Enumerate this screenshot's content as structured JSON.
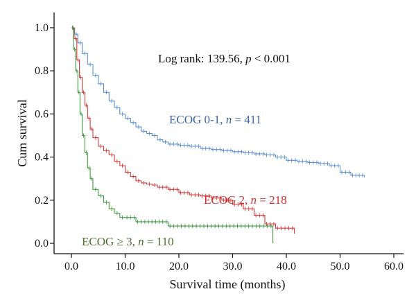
{
  "chart_data": {
    "type": "line",
    "subtype": "kaplan-meier",
    "title": "",
    "xlabel": "Survival time (months)",
    "ylabel": "Cum survival",
    "xlim": [
      0,
      60
    ],
    "ylim": [
      0,
      1
    ],
    "x_ticks": [
      "0.0",
      "10.0",
      "20.0",
      "30.0",
      "40.0",
      "50.0",
      "60.0"
    ],
    "y_ticks": [
      "0.0",
      "0.2",
      "0.4",
      "0.6",
      "0.8",
      "1.0"
    ],
    "grid": false,
    "legend": "none",
    "annotations": {
      "test_prefix": "Log rank: 139.56,",
      "test_p": "p",
      "test_suffix": " < 0.001"
    },
    "series": [
      {
        "label_prefix": "ECOG 0-1,",
        "label_n": "n",
        "label_suffix": " = 411",
        "color": "#5b8fd4",
        "points": [
          [
            0,
            1.0
          ],
          [
            0.6,
            0.97
          ],
          [
            1.2,
            0.93
          ],
          [
            2,
            0.88
          ],
          [
            3,
            0.83
          ],
          [
            4,
            0.78
          ],
          [
            5,
            0.74
          ],
          [
            6,
            0.7
          ],
          [
            7,
            0.66
          ],
          [
            8,
            0.63
          ],
          [
            9,
            0.6
          ],
          [
            10,
            0.58
          ],
          [
            11,
            0.56
          ],
          [
            12,
            0.54
          ],
          [
            13,
            0.52
          ],
          [
            14,
            0.51
          ],
          [
            15,
            0.5
          ],
          [
            16,
            0.48
          ],
          [
            17,
            0.47
          ],
          [
            18,
            0.46
          ],
          [
            20,
            0.455
          ],
          [
            22,
            0.45
          ],
          [
            24,
            0.44
          ],
          [
            26,
            0.435
          ],
          [
            28,
            0.43
          ],
          [
            30,
            0.425
          ],
          [
            32,
            0.42
          ],
          [
            34,
            0.415
          ],
          [
            36,
            0.41
          ],
          [
            38,
            0.4
          ],
          [
            40,
            0.385
          ],
          [
            42,
            0.38
          ],
          [
            44,
            0.375
          ],
          [
            46,
            0.37
          ],
          [
            48,
            0.36
          ],
          [
            50,
            0.33
          ],
          [
            52,
            0.315
          ],
          [
            54.5,
            0.305
          ]
        ]
      },
      {
        "label_prefix": "ECOG 2,",
        "label_n": "n",
        "label_suffix": " = 218",
        "color": "#d93838",
        "points": [
          [
            0,
            1.0
          ],
          [
            0.5,
            0.95
          ],
          [
            1,
            0.85
          ],
          [
            1.5,
            0.77
          ],
          [
            2,
            0.7
          ],
          [
            2.5,
            0.64
          ],
          [
            3,
            0.58
          ],
          [
            3.5,
            0.53
          ],
          [
            4,
            0.49
          ],
          [
            5,
            0.45
          ],
          [
            6,
            0.43
          ],
          [
            7,
            0.41
          ],
          [
            8,
            0.38
          ],
          [
            9,
            0.36
          ],
          [
            10,
            0.33
          ],
          [
            11,
            0.31
          ],
          [
            12,
            0.29
          ],
          [
            13,
            0.28
          ],
          [
            14,
            0.275
          ],
          [
            15,
            0.27
          ],
          [
            16,
            0.26
          ],
          [
            18,
            0.25
          ],
          [
            20,
            0.235
          ],
          [
            22,
            0.225
          ],
          [
            24,
            0.22
          ],
          [
            26,
            0.21
          ],
          [
            28,
            0.2
          ],
          [
            30,
            0.18
          ],
          [
            32,
            0.16
          ],
          [
            34,
            0.13
          ],
          [
            36,
            0.09
          ],
          [
            38,
            0.07
          ],
          [
            41.5,
            0.045
          ]
        ]
      },
      {
        "label_prefix": "ECOG ≥ 3,",
        "label_n": "n",
        "label_suffix": " = 110",
        "color": "#3f9a3f",
        "points": [
          [
            0,
            1.0
          ],
          [
            0.4,
            0.9
          ],
          [
            0.8,
            0.8
          ],
          [
            1.2,
            0.7
          ],
          [
            1.6,
            0.6
          ],
          [
            2,
            0.5
          ],
          [
            2.5,
            0.42
          ],
          [
            3,
            0.35
          ],
          [
            3.5,
            0.3
          ],
          [
            4,
            0.25
          ],
          [
            5,
            0.22
          ],
          [
            6,
            0.19
          ],
          [
            7,
            0.16
          ],
          [
            8,
            0.14
          ],
          [
            9,
            0.12
          ],
          [
            10,
            0.12
          ],
          [
            12,
            0.1
          ],
          [
            14,
            0.1
          ],
          [
            16,
            0.1
          ],
          [
            18,
            0.08
          ],
          [
            25,
            0.08
          ],
          [
            37.5,
            0.08
          ],
          [
            37.5,
            0.0
          ]
        ]
      }
    ]
  }
}
